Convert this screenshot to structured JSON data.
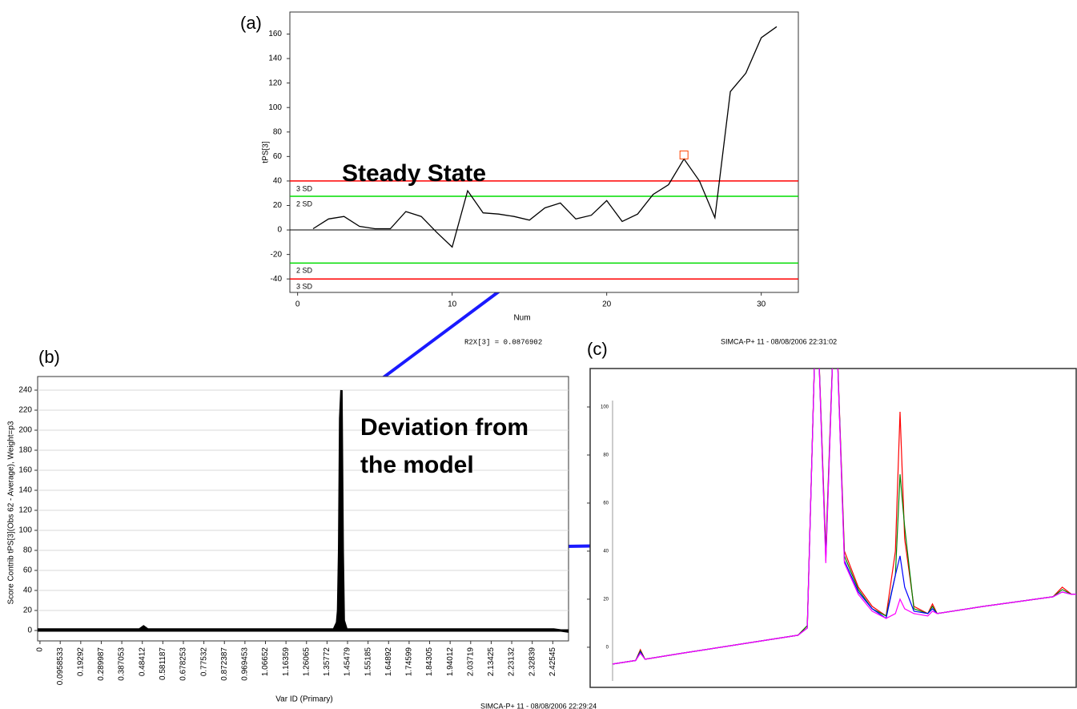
{
  "chart_data": [
    {
      "type": "line",
      "panel_label": "(a)",
      "x_label": "Num",
      "y_label": "tPS[3]",
      "annotation": "Steady State",
      "footer": [
        "R2X[3] = 0.0876902",
        "SIMCA-P+ 11 - 08/08/2006 22:31:02"
      ],
      "x": [
        1,
        2,
        3,
        4,
        5,
        6,
        7,
        8,
        9,
        10,
        11,
        12,
        13,
        14,
        15,
        16,
        17,
        18,
        19,
        20,
        21,
        22,
        23,
        24,
        25,
        26,
        27,
        28,
        29,
        30,
        31
      ],
      "values": [
        1,
        9,
        11,
        3,
        1,
        1,
        15,
        11,
        -2,
        -14,
        32,
        14,
        13,
        11,
        8,
        18,
        22,
        9,
        12,
        24,
        7,
        13,
        29,
        37,
        58,
        40,
        10,
        113,
        128,
        157,
        166
      ],
      "color": "#000000",
      "xlim": [
        -0.5,
        32.4
      ],
      "ylim": [
        -51,
        178
      ],
      "xticks": [
        0,
        10,
        20,
        30
      ],
      "yticks": [
        -40,
        -20,
        0,
        20,
        40,
        60,
        80,
        100,
        120,
        140,
        160
      ],
      "limits": [
        {
          "value": 40,
          "label": "3 SD",
          "color": "#ff0000"
        },
        {
          "value": 27.5,
          "label": "2 SD",
          "color": "#00dd00"
        },
        {
          "value": -27,
          "label": "2 SD",
          "color": "#00dd00"
        },
        {
          "value": -40,
          "label": "3 SD",
          "color": "#ff0000"
        }
      ],
      "highlight_x": 25,
      "grid": false
    },
    {
      "type": "area",
      "panel_label": "(b)",
      "x_label": "Var ID (Primary)",
      "y_label": "Score Contrib tPS[3](Obs 62 - Average), Weight=p3",
      "annotation": [
        "Deviation from",
        "the model"
      ],
      "footer": [
        "SIMCA-P+ 11 - 08/08/2006 22:29:24"
      ],
      "x": [
        -0.011,
        0.3,
        0.47,
        0.49,
        0.51,
        0.9,
        1.39,
        1.405,
        1.41,
        1.415,
        1.42,
        1.426,
        1.432,
        1.437,
        1.45,
        1.8,
        2.43,
        2.5
      ],
      "values": [
        1,
        1,
        1,
        4,
        1,
        1,
        1,
        8,
        20,
        80,
        212,
        240,
        80,
        10,
        1,
        1,
        1,
        -1
      ],
      "color": "#000000",
      "xlim": [
        -0.011,
        2.5
      ],
      "ylim": [
        -10.4,
        253.6
      ],
      "xticks": [
        0,
        0.0958533,
        0.19292,
        0.289987,
        0.387053,
        0.48412,
        0.581187,
        0.678253,
        0.77532,
        0.872387,
        0.969453,
        1.06652,
        1.16359,
        1.26065,
        1.35772,
        1.45479,
        1.55185,
        1.64892,
        1.74599,
        1.84305,
        1.94012,
        2.03719,
        2.13425,
        2.23132,
        2.32839,
        2.42545
      ],
      "yticks": [
        0,
        20,
        40,
        60,
        80,
        100,
        120,
        140,
        160,
        180,
        200,
        220,
        240
      ],
      "grid": true
    },
    {
      "type": "line",
      "panel_label": "(c)",
      "x": [
        0,
        5,
        6,
        7,
        15,
        30,
        40,
        42,
        44,
        46,
        48,
        50,
        53,
        56,
        59,
        61,
        62,
        63,
        65,
        68,
        69,
        70,
        80,
        95,
        97,
        99,
        100
      ],
      "series": [
        {
          "color": "#ff0000",
          "values": [
            -7,
            -5.5,
            -1,
            -5,
            -2.5,
            2,
            5,
            9,
            150,
            40,
            150,
            40,
            25,
            17,
            13,
            40,
            98,
            45,
            17,
            14,
            18,
            14,
            17,
            21,
            25,
            22,
            22
          ]
        },
        {
          "color": "#008000",
          "values": [
            -7,
            -5.5,
            -1.5,
            -5,
            -2.5,
            2,
            5,
            9,
            150,
            38,
            150,
            38,
            24,
            16,
            13,
            30,
            72,
            50,
            16,
            14,
            17,
            14,
            17,
            21,
            24,
            22,
            22
          ]
        },
        {
          "color": "#0000ff",
          "values": [
            -7,
            -5.5,
            -2,
            -5,
            -2.5,
            2,
            5,
            8,
            150,
            36,
            150,
            36,
            23,
            16,
            12,
            30,
            38,
            25,
            15,
            14,
            16,
            14,
            17,
            21,
            23,
            22,
            22
          ]
        },
        {
          "color": "#ff00ff",
          "values": [
            -7,
            -5.5,
            -2.5,
            -5,
            -2.5,
            2,
            5,
            8,
            150,
            35,
            150,
            35,
            22,
            15,
            12,
            14,
            20,
            16,
            14,
            13,
            15,
            14,
            17,
            21,
            23,
            22,
            22
          ]
        }
      ],
      "xlim": [
        -4.83,
        100
      ],
      "ylim": [
        -16.7,
        116
      ],
      "yticks": [
        0,
        20,
        40,
        60,
        80,
        100
      ],
      "grid": false
    }
  ]
}
